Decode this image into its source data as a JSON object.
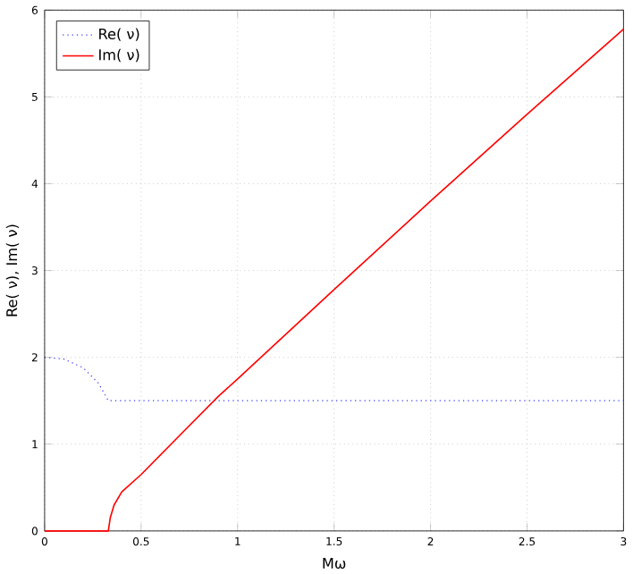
{
  "chart_data": {
    "type": "line",
    "xlabel": "Mω",
    "ylabel": "Re( ν), Im( ν)",
    "xlim": [
      0,
      3
    ],
    "ylim": [
      0,
      6
    ],
    "xticks": [
      0,
      0.5,
      1,
      1.5,
      2,
      2.5,
      3
    ],
    "yticks": [
      0,
      1,
      2,
      3,
      4,
      5,
      6
    ],
    "grid": true,
    "legend": "top left",
    "series": [
      {
        "name": "Re( ν)",
        "color": "#3333ff",
        "line_style": "dotted",
        "x": [
          0,
          0.1,
          0.2,
          0.28,
          0.33,
          3
        ],
        "values": [
          2,
          1.98,
          1.88,
          1.7,
          1.5,
          1.5
        ]
      },
      {
        "name": "Im( ν)",
        "color": "#ff0000",
        "line_style": "solid",
        "x": [
          0,
          0.33,
          0.34,
          0.36,
          0.4,
          0.5,
          0.7,
          0.9,
          1,
          1.5,
          2,
          2.5,
          3
        ],
        "values": [
          0,
          0,
          0.15,
          0.3,
          0.45,
          0.65,
          1.1,
          1.55,
          1.75,
          2.78,
          3.8,
          4.8,
          5.78
        ]
      }
    ]
  }
}
